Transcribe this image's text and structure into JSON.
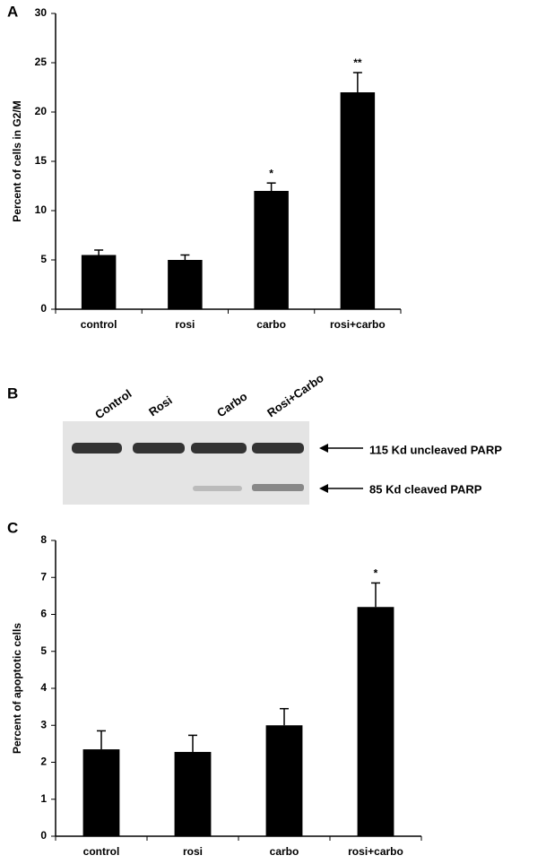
{
  "chart_data": [
    {
      "type": "bar",
      "panel": "A",
      "y_label": "Percent of cells in G2/M",
      "categories": [
        "control",
        "rosi",
        "carbo",
        "rosi+carbo"
      ],
      "values": [
        5.5,
        5.0,
        12.0,
        22.0
      ],
      "errors": [
        0.5,
        0.5,
        0.8,
        2.0
      ],
      "value_annotations": [
        null,
        null,
        "*",
        "**"
      ],
      "color": "#000000",
      "ylim": [
        0,
        30
      ],
      "yticks": [
        0,
        5,
        10,
        15,
        20,
        25,
        30
      ],
      "grid": false
    },
    {
      "type": "bar",
      "panel": "C",
      "y_label": "Percent of apoptotic cells",
      "categories": [
        "control",
        "rosi",
        "carbo",
        "rosi+carbo"
      ],
      "values": [
        2.35,
        2.28,
        3.0,
        6.2
      ],
      "errors": [
        0.5,
        0.45,
        0.45,
        0.65
      ],
      "value_annotations": [
        null,
        null,
        null,
        "*"
      ],
      "color": "#000000",
      "ylim": [
        0,
        8
      ],
      "yticks": [
        0,
        1,
        2,
        3,
        4,
        5,
        6,
        7,
        8
      ],
      "grid": false
    }
  ],
  "blot": {
    "panel": "B",
    "lanes": [
      "Control",
      "Rosi",
      "Carbo",
      "Rosi+Carbo"
    ],
    "bands": [
      "115 Kd uncleaved PARP",
      "85 Kd cleaved PARP"
    ]
  }
}
